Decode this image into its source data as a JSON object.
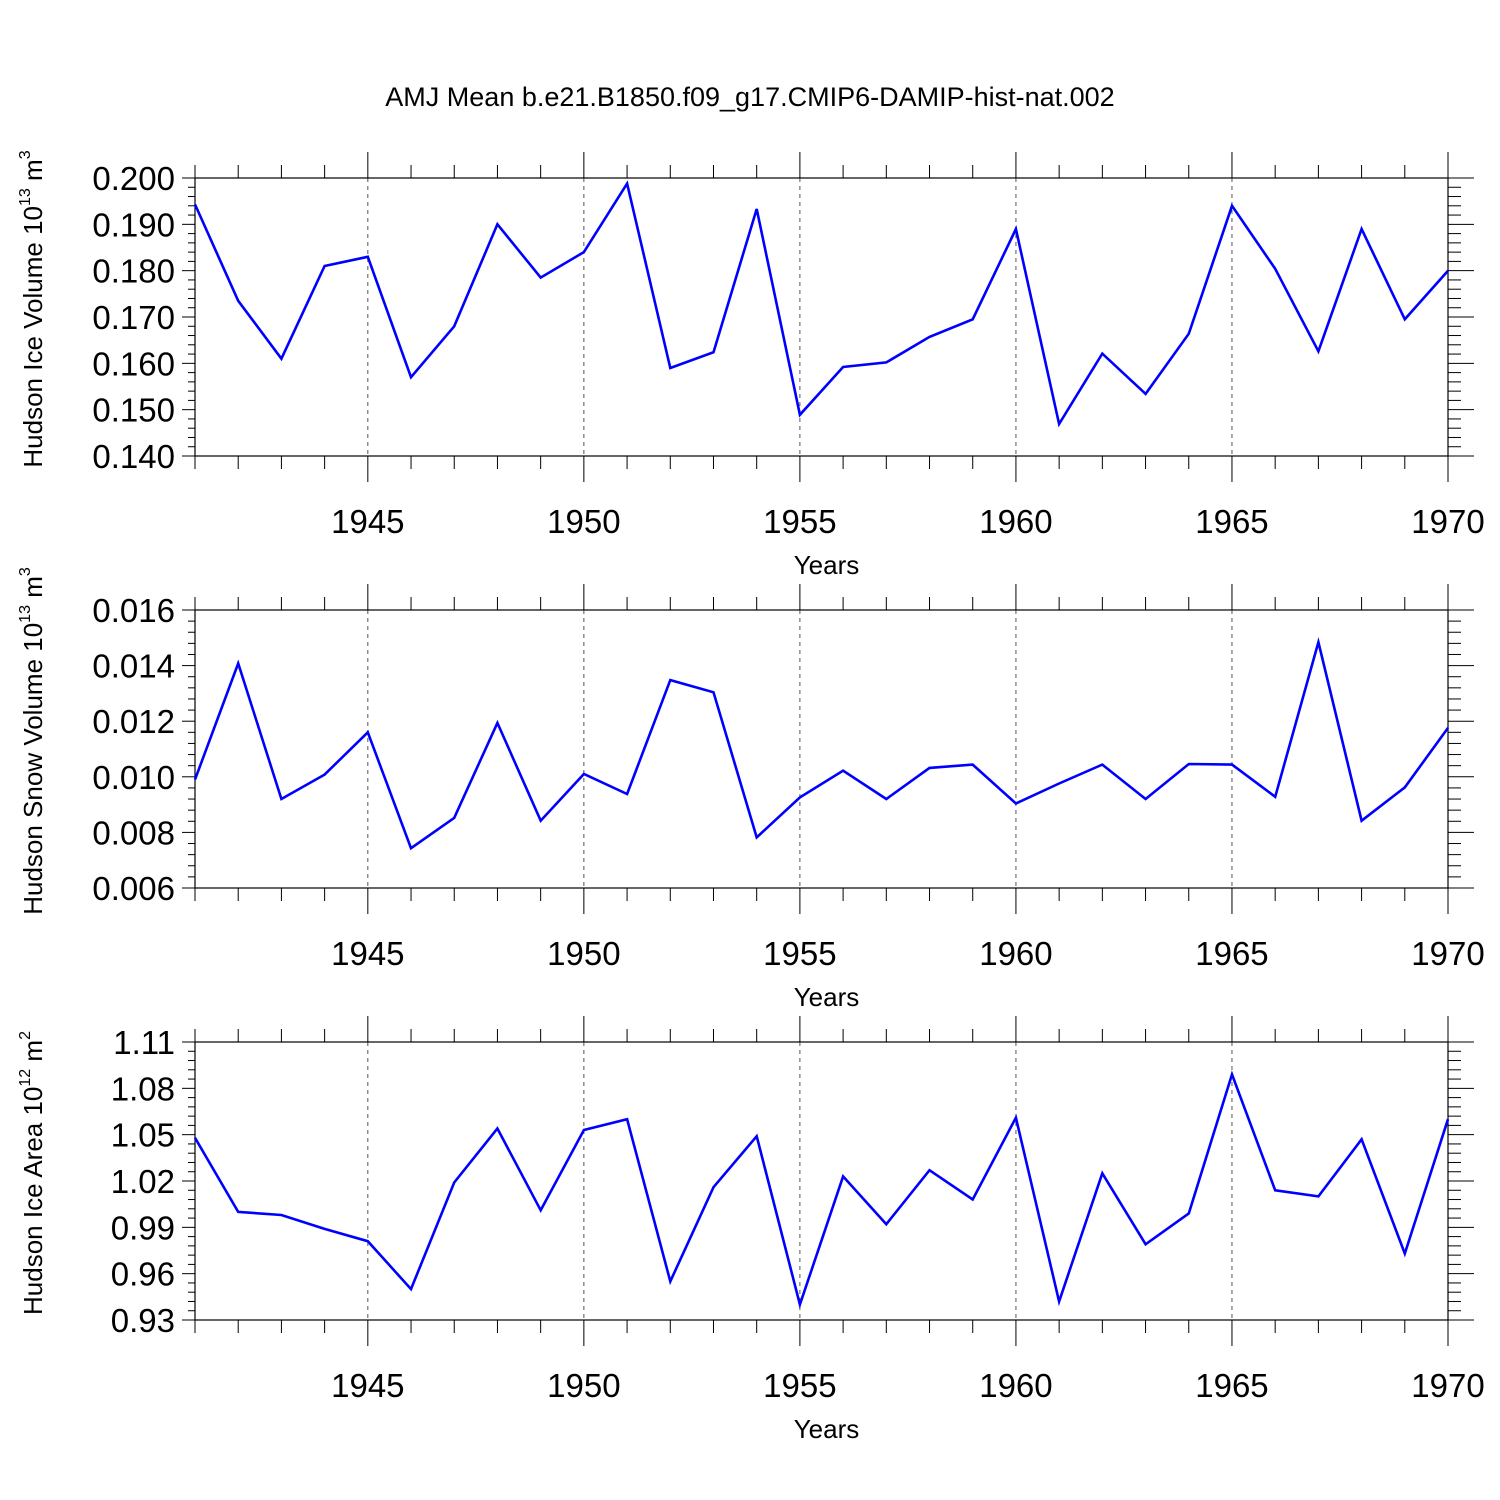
{
  "title": "AMJ Mean b.e21.B1850.f09_g17.CMIP6-DAMIP-hist-nat.002",
  "colors": {
    "series": "#0000ff",
    "axis": "#000000",
    "grid": "#555555"
  },
  "chart_data": [
    {
      "type": "line",
      "ylabel_text": "Hudson Ice Volume 10",
      "ylabel_exp": "13",
      "ylabel_unit": " m",
      "ylabel_unit_exp": "3",
      "xlabel": "Years",
      "xlim": [
        1941,
        1970
      ],
      "ylim": [
        0.14,
        0.2
      ],
      "yticks": [
        "0.140",
        "0.150",
        "0.160",
        "0.170",
        "0.180",
        "0.190",
        "0.200"
      ],
      "ytick_values": [
        0.14,
        0.15,
        0.16,
        0.17,
        0.18,
        0.19,
        0.2
      ],
      "xticks": [
        "1945",
        "1950",
        "1955",
        "1960",
        "1965",
        "1970"
      ],
      "xtick_values": [
        1945,
        1950,
        1955,
        1960,
        1965,
        1970
      ],
      "grid": "vertical dashed at major x ticks",
      "x": [
        1941,
        1942,
        1943,
        1944,
        1945,
        1946,
        1947,
        1948,
        1949,
        1950,
        1951,
        1952,
        1953,
        1954,
        1955,
        1956,
        1957,
        1958,
        1959,
        1960,
        1961,
        1962,
        1963,
        1964,
        1965,
        1966,
        1967,
        1968,
        1969,
        1970
      ],
      "series": [
        {
          "values": [
            0.1943,
            0.1735,
            0.161,
            0.181,
            0.183,
            0.157,
            0.168,
            0.19,
            0.1785,
            0.184,
            0.1988,
            0.159,
            0.1624,
            0.1933,
            0.1489,
            0.1592,
            0.1602,
            0.1657,
            0.1695,
            0.189,
            0.1469,
            0.1621,
            0.1534,
            0.1664,
            0.194,
            0.1804,
            0.1626,
            0.189,
            0.1695,
            0.18
          ]
        }
      ]
    },
    {
      "type": "line",
      "ylabel_text": "Hudson Snow Volume 10",
      "ylabel_exp": "13",
      "ylabel_unit": " m",
      "ylabel_unit_exp": "3",
      "xlabel": "Years",
      "xlim": [
        1941,
        1970
      ],
      "ylim": [
        0.006,
        0.016
      ],
      "yticks": [
        "0.006",
        "0.008",
        "0.010",
        "0.012",
        "0.014",
        "0.016"
      ],
      "ytick_values": [
        0.006,
        0.008,
        0.01,
        0.012,
        0.014,
        0.016
      ],
      "xticks": [
        "1945",
        "1950",
        "1955",
        "1960",
        "1965",
        "1970"
      ],
      "xtick_values": [
        1945,
        1950,
        1955,
        1960,
        1965,
        1970
      ],
      "grid": "vertical dashed at major x ticks",
      "x": [
        1941,
        1942,
        1943,
        1944,
        1945,
        1946,
        1947,
        1948,
        1949,
        1950,
        1951,
        1952,
        1953,
        1954,
        1955,
        1956,
        1957,
        1958,
        1959,
        1960,
        1961,
        1962,
        1963,
        1964,
        1965,
        1966,
        1967,
        1968,
        1969,
        1970
      ],
      "series": [
        {
          "values": [
            0.0099,
            0.01408,
            0.0092,
            0.01008,
            0.0116,
            0.00743,
            0.00852,
            0.01194,
            0.00842,
            0.0101,
            0.00938,
            0.01348,
            0.01304,
            0.00782,
            0.00926,
            0.01022,
            0.0092,
            0.01032,
            0.01044,
            0.00904,
            0.00976,
            0.01044,
            0.0092,
            0.01046,
            0.01044,
            0.00928,
            0.01484,
            0.00842,
            0.00962,
            0.01176
          ]
        }
      ]
    },
    {
      "type": "line",
      "ylabel_text": "Hudson Ice Area 10",
      "ylabel_exp": "12",
      "ylabel_unit": " m",
      "ylabel_unit_exp": "2",
      "xlabel": "Years",
      "xlim": [
        1941,
        1970
      ],
      "ylim": [
        0.93,
        1.11
      ],
      "yticks": [
        "0.93",
        "0.96",
        "0.99",
        "1.02",
        "1.05",
        "1.08",
        "1.11"
      ],
      "ytick_values": [
        0.93,
        0.96,
        0.99,
        1.02,
        1.05,
        1.08,
        1.11
      ],
      "xticks": [
        "1945",
        "1950",
        "1955",
        "1960",
        "1965",
        "1970"
      ],
      "xtick_values": [
        1945,
        1950,
        1955,
        1960,
        1965,
        1970
      ],
      "grid": "vertical dashed at major x ticks",
      "x": [
        1941,
        1942,
        1943,
        1944,
        1945,
        1946,
        1947,
        1948,
        1949,
        1950,
        1951,
        1952,
        1953,
        1954,
        1955,
        1956,
        1957,
        1958,
        1959,
        1960,
        1961,
        1962,
        1963,
        1964,
        1965,
        1966,
        1967,
        1968,
        1969,
        1970
      ],
      "series": [
        {
          "values": [
            1.048,
            1.0,
            0.998,
            0.989,
            0.981,
            0.95,
            1.019,
            1.054,
            1.001,
            1.053,
            1.06,
            0.955,
            1.016,
            1.049,
            0.94,
            1.023,
            0.992,
            1.027,
            1.008,
            1.061,
            0.942,
            1.025,
            0.979,
            0.999,
            1.089,
            1.014,
            1.01,
            1.047,
            0.973,
            1.06
          ]
        }
      ]
    }
  ]
}
